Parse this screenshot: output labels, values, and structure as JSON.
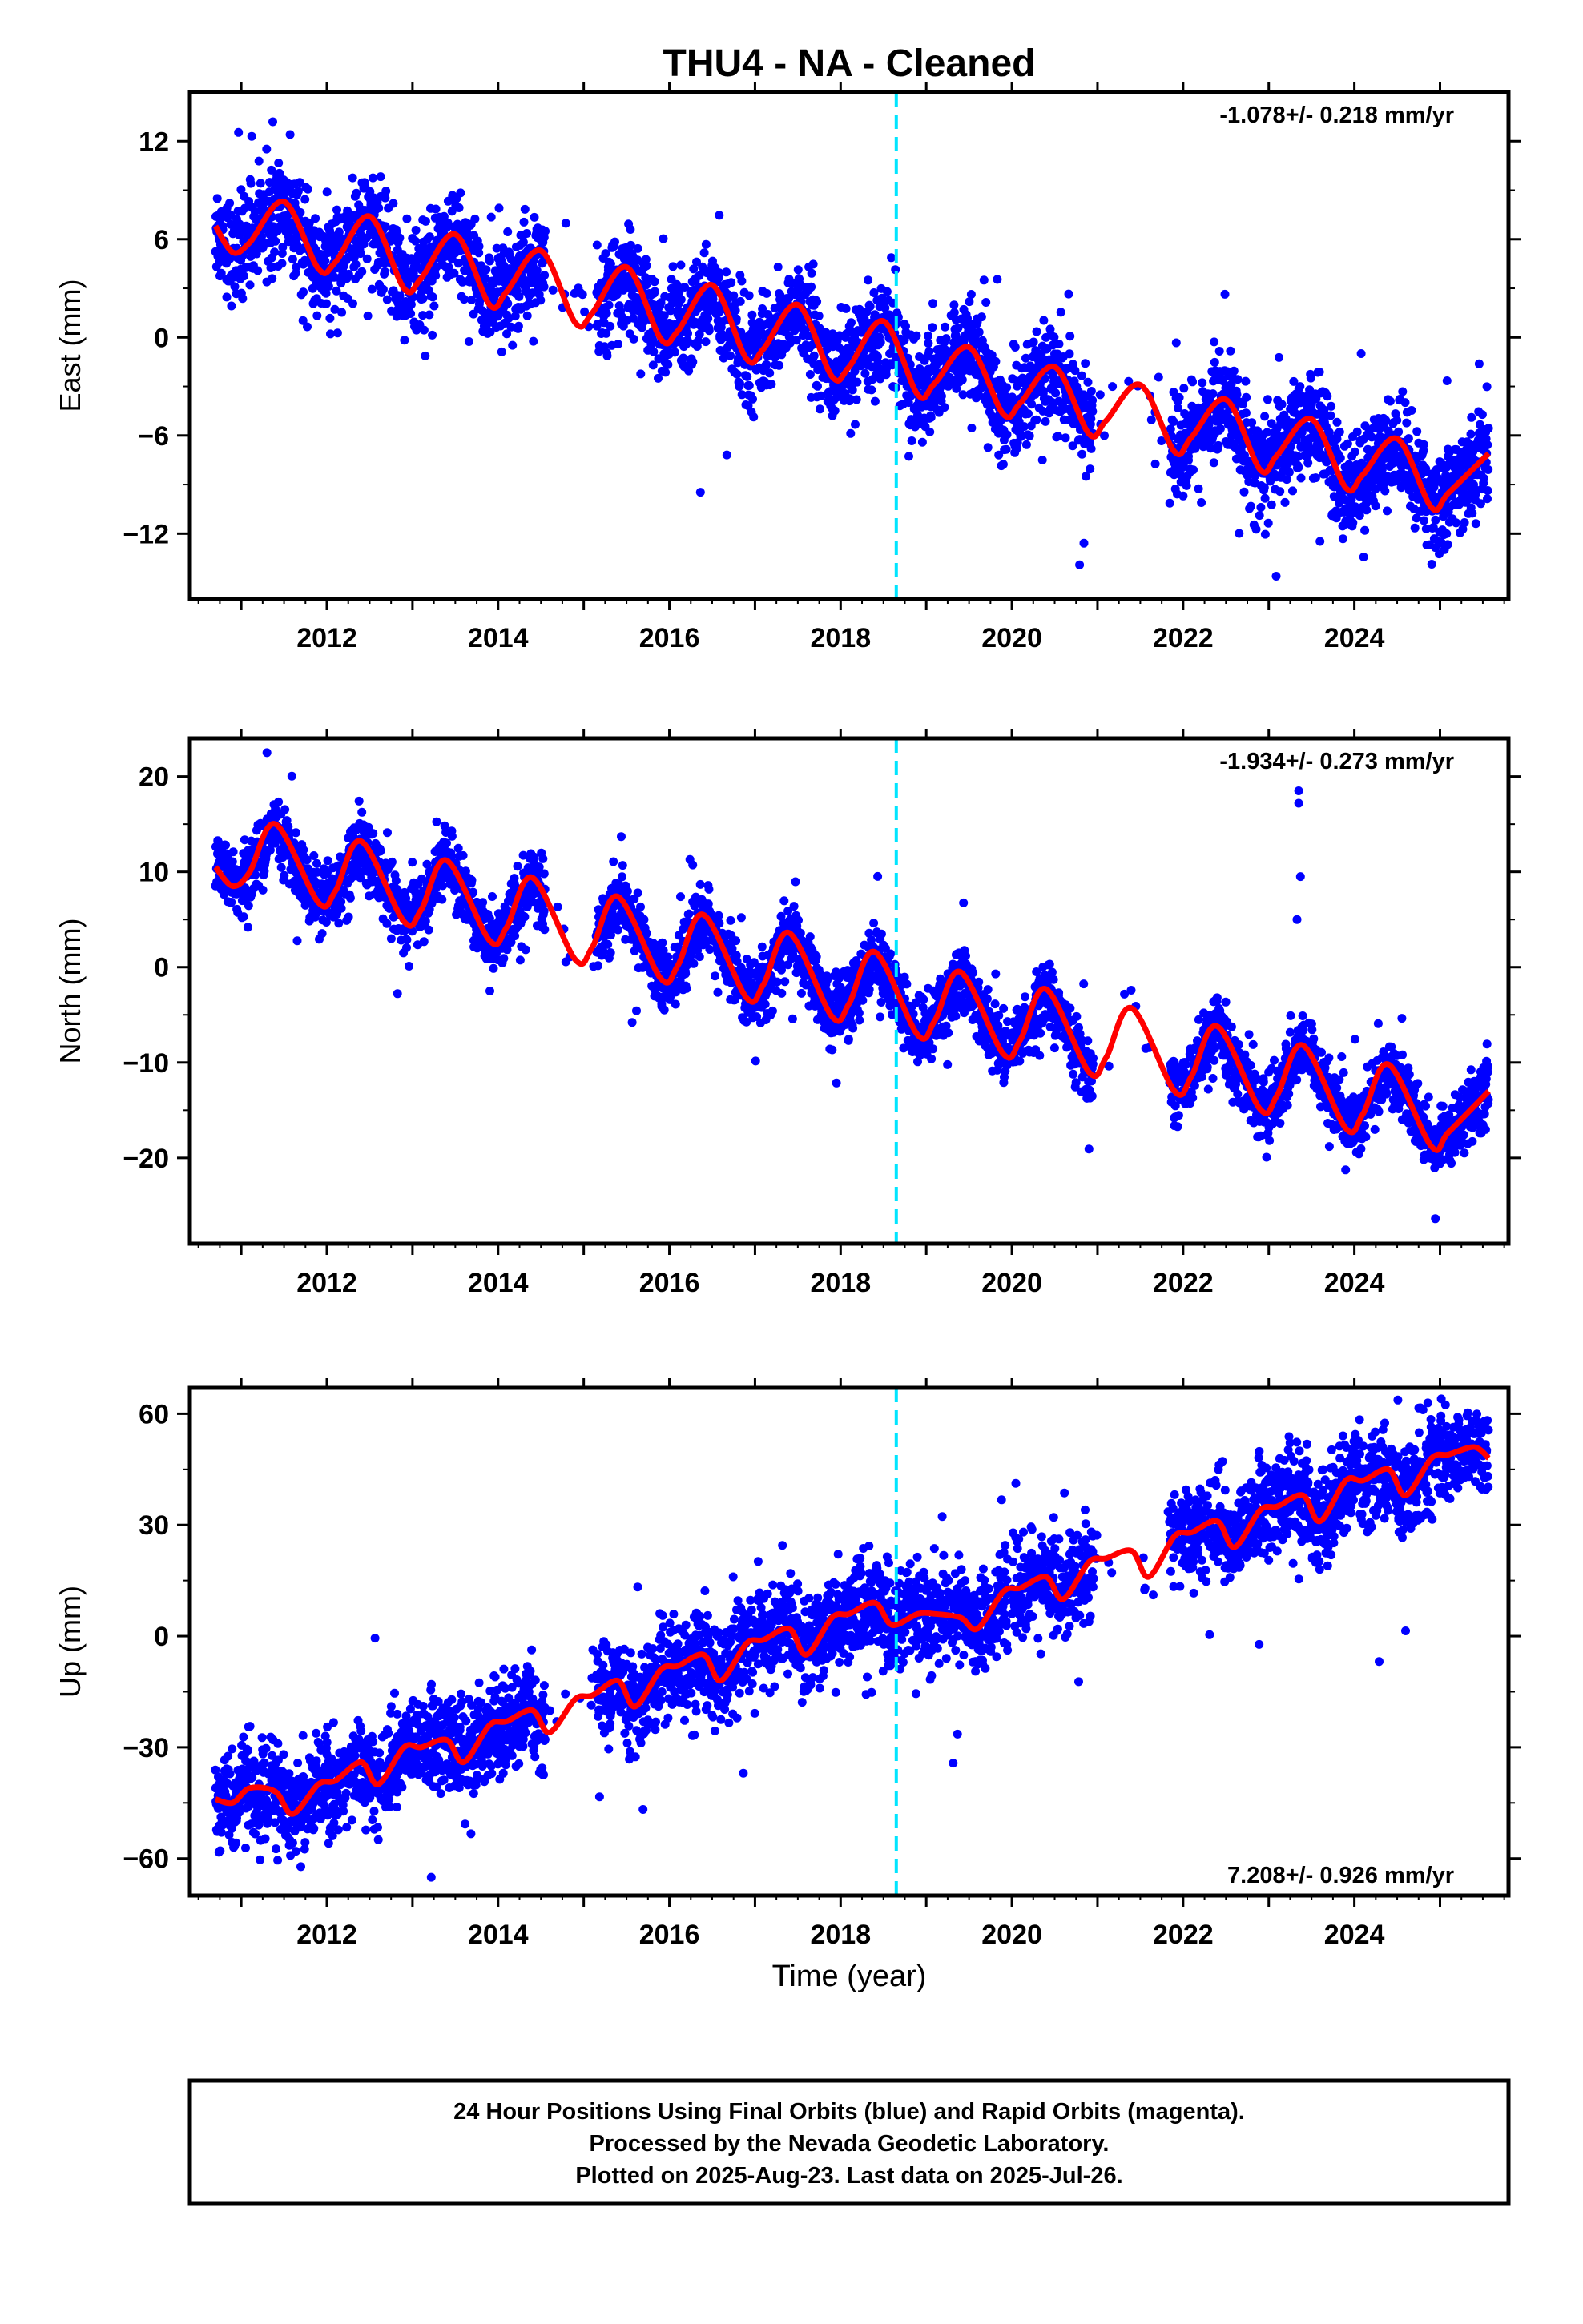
{
  "title": "THU4  - NA - Cleaned",
  "xlabel": "Time (year)",
  "footer": {
    "line1": "24 Hour Positions Using Final Orbits (blue) and Rapid Orbits (magenta).",
    "line2": "Processed by the Nevada Geodetic Laboratory.",
    "line3": "Plotted on 2025-Aug-23. Last data on 2025-Jul-26."
  },
  "colors": {
    "points": "#0000ff",
    "fit": "#ff0000",
    "break": "#00e5ff",
    "axes": "#000000"
  },
  "chart_data": [
    {
      "type": "scatter",
      "component": "East",
      "ylabel": "East (mm)",
      "rate_text": "-1.078+/- 0.218 mm/yr",
      "xlim": [
        2010.4,
        2025.8
      ],
      "ylim": [
        -16,
        15
      ],
      "xticks": [
        2012,
        2014,
        2016,
        2018,
        2020,
        2022,
        2024
      ],
      "yticks": [
        12,
        6,
        0,
        -6,
        -12
      ],
      "ytick_labels": [
        "12",
        "6",
        "0",
        "−6",
        "−12"
      ],
      "break_year": 2018.65,
      "data_start": 2010.7,
      "data_end": 2025.57,
      "trend_mm_per_yr": -1.078,
      "fit_curve": [
        [
          2010.7,
          6.8
        ],
        [
          2010.9,
          5.2
        ],
        [
          2011.1,
          5.8
        ],
        [
          2011.5,
          8.3
        ],
        [
          2011.9,
          4.2
        ],
        [
          2012.1,
          4.6
        ],
        [
          2012.5,
          7.4
        ],
        [
          2012.9,
          3.0
        ],
        [
          2013.1,
          3.6
        ],
        [
          2013.5,
          6.3
        ],
        [
          2013.9,
          2.0
        ],
        [
          2014.1,
          2.8
        ],
        [
          2014.5,
          5.3
        ],
        [
          2014.9,
          0.9
        ],
        [
          2015.1,
          1.5
        ],
        [
          2015.5,
          4.3
        ],
        [
          2015.9,
          -0.1
        ],
        [
          2016.1,
          0.4
        ],
        [
          2016.5,
          3.2
        ],
        [
          2016.9,
          -1.3
        ],
        [
          2017.1,
          -0.7
        ],
        [
          2017.5,
          2.0
        ],
        [
          2017.9,
          -2.4
        ],
        [
          2018.1,
          -1.8
        ],
        [
          2018.5,
          1.0
        ],
        [
          2018.9,
          -3.5
        ],
        [
          2019.1,
          -2.8
        ],
        [
          2019.5,
          -0.6
        ],
        [
          2019.9,
          -4.7
        ],
        [
          2020.1,
          -4.0
        ],
        [
          2020.5,
          -1.8
        ],
        [
          2020.9,
          -5.9
        ],
        [
          2021.1,
          -5.1
        ],
        [
          2021.5,
          -2.9
        ],
        [
          2021.9,
          -7.0
        ],
        [
          2022.1,
          -6.1
        ],
        [
          2022.5,
          -3.8
        ],
        [
          2022.9,
          -8.1
        ],
        [
          2023.1,
          -7.2
        ],
        [
          2023.5,
          -5.0
        ],
        [
          2023.9,
          -9.2
        ],
        [
          2024.1,
          -8.4
        ],
        [
          2024.5,
          -6.2
        ],
        [
          2024.9,
          -10.4
        ],
        [
          2025.1,
          -9.5
        ],
        [
          2025.57,
          -7.1
        ]
      ],
      "point_count": 4300
    },
    {
      "type": "scatter",
      "component": "North",
      "ylabel": "North (mm)",
      "rate_text": "-1.934+/- 0.273 mm/yr",
      "xlim": [
        2010.4,
        2025.8
      ],
      "ylim": [
        -29,
        24
      ],
      "xticks": [
        2012,
        2014,
        2016,
        2018,
        2020,
        2022,
        2024
      ],
      "yticks": [
        20,
        10,
        0,
        -10,
        -20
      ],
      "ytick_labels": [
        "20",
        "10",
        "0",
        "−10",
        "−20"
      ],
      "break_year": 2018.65,
      "data_start": 2010.7,
      "data_end": 2025.57,
      "trend_mm_per_yr": -1.934,
      "fit_curve": [
        [
          2010.7,
          10.5
        ],
        [
          2010.9,
          8.5
        ],
        [
          2011.1,
          10.0
        ],
        [
          2011.4,
          15.0
        ],
        [
          2011.9,
          6.8
        ],
        [
          2012.1,
          8.0
        ],
        [
          2012.4,
          13.2
        ],
        [
          2012.9,
          4.8
        ],
        [
          2013.1,
          6.0
        ],
        [
          2013.4,
          11.2
        ],
        [
          2013.9,
          2.8
        ],
        [
          2014.1,
          4.2
        ],
        [
          2014.4,
          9.4
        ],
        [
          2014.9,
          0.8
        ],
        [
          2015.1,
          2.1
        ],
        [
          2015.4,
          7.4
        ],
        [
          2015.9,
          -1.2
        ],
        [
          2016.1,
          0.2
        ],
        [
          2016.4,
          5.5
        ],
        [
          2016.9,
          -3.2
        ],
        [
          2017.1,
          -1.8
        ],
        [
          2017.4,
          3.6
        ],
        [
          2017.9,
          -5.2
        ],
        [
          2018.1,
          -3.8
        ],
        [
          2018.4,
          1.6
        ],
        [
          2018.9,
          -7.1
        ],
        [
          2019.1,
          -5.6
        ],
        [
          2019.4,
          -0.5
        ],
        [
          2019.9,
          -9.1
        ],
        [
          2020.1,
          -7.6
        ],
        [
          2020.4,
          -2.3
        ],
        [
          2020.9,
          -11.0
        ],
        [
          2021.1,
          -9.5
        ],
        [
          2021.4,
          -4.3
        ],
        [
          2021.9,
          -13.0
        ],
        [
          2022.1,
          -11.4
        ],
        [
          2022.4,
          -6.2
        ],
        [
          2022.9,
          -14.9
        ],
        [
          2023.1,
          -13.4
        ],
        [
          2023.4,
          -8.2
        ],
        [
          2023.9,
          -16.9
        ],
        [
          2024.1,
          -15.4
        ],
        [
          2024.4,
          -10.2
        ],
        [
          2024.9,
          -18.8
        ],
        [
          2025.1,
          -17.3
        ],
        [
          2025.57,
          -13.0
        ]
      ],
      "outliers": [
        [
          2011.3,
          22.5
        ],
        [
          2023.35,
          18.5
        ],
        [
          2023.35,
          17.2
        ],
        [
          2023.37,
          9.5
        ],
        [
          2023.33,
          5.0
        ]
      ],
      "point_count": 4300
    },
    {
      "type": "scatter",
      "component": "Up",
      "ylabel": "Up (mm)",
      "rate_text": "7.208+/- 0.926 mm/yr",
      "xlim": [
        2010.4,
        2025.8
      ],
      "ylim": [
        -70,
        67
      ],
      "xticks": [
        2012,
        2014,
        2016,
        2018,
        2020,
        2022,
        2024
      ],
      "yticks": [
        60,
        30,
        0,
        -30,
        -60
      ],
      "ytick_labels": [
        "60",
        "30",
        "0",
        "−30",
        "−60"
      ],
      "break_year": 2018.65,
      "data_start": 2010.7,
      "data_end": 2025.57,
      "trend_mm_per_yr": 7.208,
      "fit_curve": [
        [
          2010.7,
          -44
        ],
        [
          2010.9,
          -45
        ],
        [
          2011.1,
          -41
        ],
        [
          2011.4,
          -42
        ],
        [
          2011.6,
          -48
        ],
        [
          2011.9,
          -40
        ],
        [
          2012.1,
          -39
        ],
        [
          2012.4,
          -34
        ],
        [
          2012.6,
          -40
        ],
        [
          2012.9,
          -30
        ],
        [
          2013.1,
          -30
        ],
        [
          2013.4,
          -28
        ],
        [
          2013.6,
          -34
        ],
        [
          2013.9,
          -24
        ],
        [
          2014.1,
          -23
        ],
        [
          2014.4,
          -20
        ],
        [
          2014.6,
          -26
        ],
        [
          2014.9,
          -17
        ],
        [
          2015.1,
          -16
        ],
        [
          2015.4,
          -12
        ],
        [
          2015.6,
          -19
        ],
        [
          2015.9,
          -9
        ],
        [
          2016.1,
          -8
        ],
        [
          2016.4,
          -5
        ],
        [
          2016.6,
          -12
        ],
        [
          2016.9,
          -2
        ],
        [
          2017.1,
          -1
        ],
        [
          2017.4,
          2
        ],
        [
          2017.6,
          -5
        ],
        [
          2017.9,
          5
        ],
        [
          2018.1,
          6
        ],
        [
          2018.4,
          9
        ],
        [
          2018.6,
          3
        ],
        [
          2018.9,
          6
        ],
        [
          2019.1,
          6
        ],
        [
          2019.4,
          5
        ],
        [
          2019.6,
          2
        ],
        [
          2019.9,
          12
        ],
        [
          2020.1,
          13
        ],
        [
          2020.4,
          16
        ],
        [
          2020.6,
          10
        ],
        [
          2020.9,
          20
        ],
        [
          2021.1,
          21
        ],
        [
          2021.4,
          23
        ],
        [
          2021.6,
          16
        ],
        [
          2021.9,
          27
        ],
        [
          2022.1,
          28
        ],
        [
          2022.4,
          31
        ],
        [
          2022.6,
          24
        ],
        [
          2022.9,
          34
        ],
        [
          2023.1,
          35
        ],
        [
          2023.4,
          38
        ],
        [
          2023.6,
          31
        ],
        [
          2023.9,
          42
        ],
        [
          2024.1,
          42
        ],
        [
          2024.4,
          45
        ],
        [
          2024.6,
          38
        ],
        [
          2024.9,
          48
        ],
        [
          2025.1,
          49
        ],
        [
          2025.4,
          51
        ],
        [
          2025.57,
          48
        ]
      ],
      "point_count": 4300
    }
  ]
}
